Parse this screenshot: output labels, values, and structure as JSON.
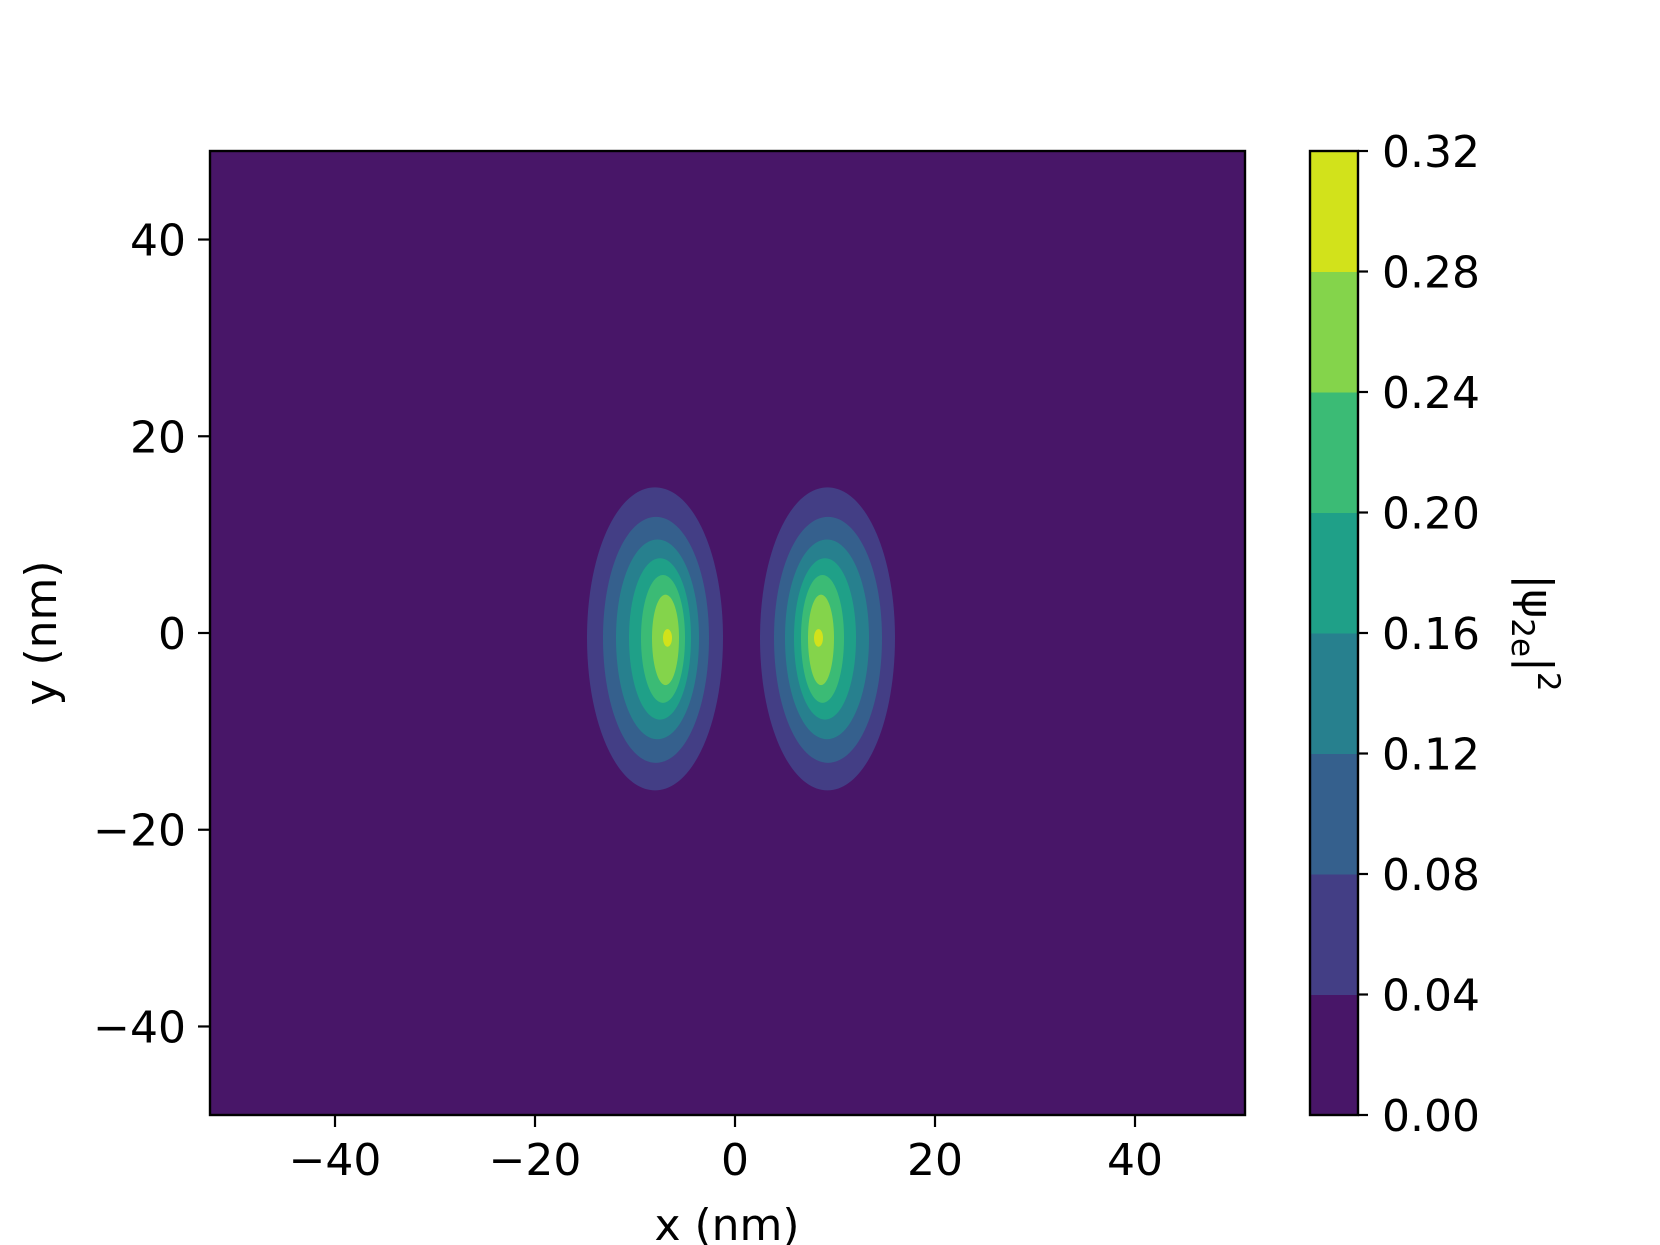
{
  "chart_data": {
    "type": "heatmap",
    "subtype": "filled-contour",
    "title": "",
    "xlabel": "x (nm)",
    "ylabel": "y (nm)",
    "xlim": [
      -52.5,
      51
    ],
    "ylim": [
      -49,
      49
    ],
    "xticks": [
      -40,
      -20,
      0,
      20,
      40
    ],
    "yticks": [
      -40,
      -20,
      0,
      20,
      40
    ],
    "xtick_labels": [
      "−40",
      "−20",
      "0",
      "20",
      "40"
    ],
    "ytick_labels": [
      "−40",
      "−20",
      "0",
      "20",
      "40"
    ],
    "grid": false,
    "colorbar": {
      "label": "|ψ2e|²",
      "label_base": "|ψ",
      "label_subscript": "2e",
      "label_tail": "|",
      "label_superscript": "2",
      "levels": [
        0.0,
        0.04,
        0.08,
        0.12,
        0.16,
        0.2,
        0.24,
        0.28,
        0.32
      ],
      "tick_labels": [
        "0.00",
        "0.04",
        "0.08",
        "0.12",
        "0.16",
        "0.20",
        "0.24",
        "0.28",
        "0.32"
      ],
      "colors": [
        "#481668",
        "#433e85",
        "#35608d",
        "#27808e",
        "#1fa088",
        "#3bbb75",
        "#84d44b",
        "#d2e21b"
      ]
    },
    "lobes": [
      {
        "x_peak": -6.5,
        "y_peak": -0.5,
        "contours": [
          {
            "level": 0.04,
            "x0": -14.8,
            "x1": -1.2,
            "y0": -16.0,
            "y1": 14.8
          },
          {
            "level": 0.08,
            "x0": -13.2,
            "x1": -2.6,
            "y0": -13.2,
            "y1": 11.8
          },
          {
            "level": 0.12,
            "x0": -11.9,
            "x1": -3.6,
            "y0": -10.8,
            "y1": 9.5
          },
          {
            "level": 0.16,
            "x0": -10.6,
            "x1": -4.4,
            "y0": -8.8,
            "y1": 7.6
          },
          {
            "level": 0.2,
            "x0": -9.4,
            "x1": -5.0,
            "y0": -7.1,
            "y1": 5.9
          },
          {
            "level": 0.24,
            "x0": -8.3,
            "x1": -5.6,
            "y0": -5.3,
            "y1": 3.9
          },
          {
            "level": 0.28,
            "x0": -7.2,
            "x1": -6.3,
            "y0": -1.4,
            "y1": 0.4
          }
        ]
      },
      {
        "x_peak": 8.2,
        "y_peak": -0.5,
        "contours": [
          {
            "level": 0.04,
            "x0": 2.5,
            "x1": 16.0,
            "y0": -16.0,
            "y1": 14.8
          },
          {
            "level": 0.08,
            "x0": 3.9,
            "x1": 14.7,
            "y0": -13.2,
            "y1": 11.8
          },
          {
            "level": 0.12,
            "x0": 5.0,
            "x1": 13.4,
            "y0": -10.8,
            "y1": 9.5
          },
          {
            "level": 0.16,
            "x0": 5.9,
            "x1": 12.1,
            "y0": -8.8,
            "y1": 7.6
          },
          {
            "level": 0.2,
            "x0": 6.6,
            "x1": 10.9,
            "y0": -7.1,
            "y1": 5.9
          },
          {
            "level": 0.24,
            "x0": 7.3,
            "x1": 9.9,
            "y0": -5.3,
            "y1": 3.9
          },
          {
            "level": 0.28,
            "x0": 7.9,
            "x1": 8.8,
            "y0": -1.4,
            "y1": 0.4
          }
        ]
      }
    ]
  }
}
